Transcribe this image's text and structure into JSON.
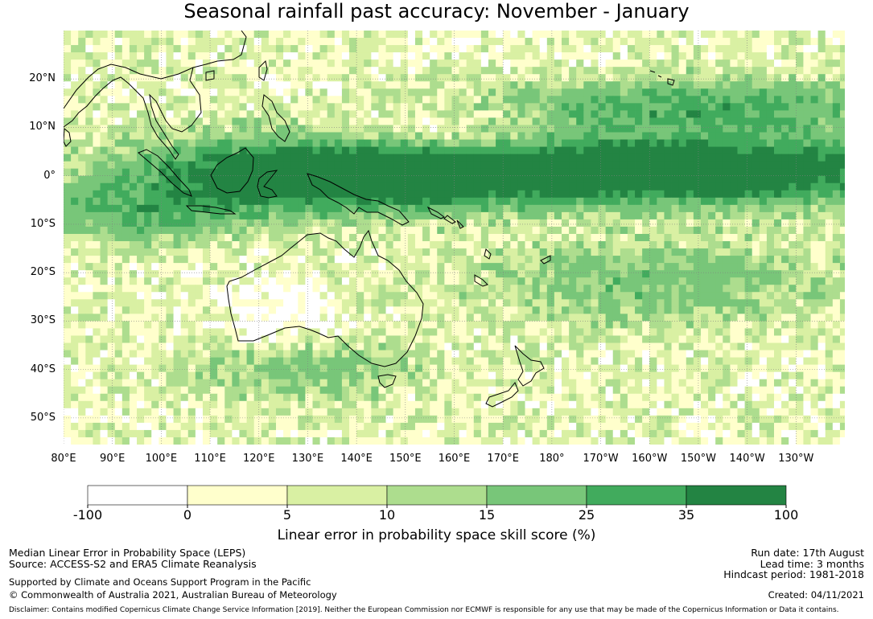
{
  "title": "Seasonal rainfall past accuracy: November - January",
  "map": {
    "lon_labels": [
      "80°E",
      "90°E",
      "100°E",
      "110°E",
      "120°E",
      "130°E",
      "140°E",
      "150°E",
      "160°E",
      "170°E",
      "180°",
      "170°W",
      "160°W",
      "150°W",
      "140°W",
      "130°W"
    ],
    "lat_labels": [
      "20°N",
      "10°N",
      "0°",
      "10°S",
      "20°S",
      "30°S",
      "40°S",
      "50°S"
    ],
    "lon_range": [
      80,
      240
    ],
    "lat_range": [
      -55.5,
      30
    ],
    "grid": true,
    "colors": {
      "ocean_bg": "#ffffcc",
      "coastline": "#000000",
      "gridline": "#808080"
    }
  },
  "colorbar": {
    "tick_labels": [
      "-100",
      "0",
      "5",
      "10",
      "15",
      "25",
      "35",
      "100"
    ],
    "colors": [
      "#ffffff",
      "#ffffcc",
      "#d9f0a3",
      "#addd8e",
      "#78c679",
      "#41ab5d",
      "#238443"
    ],
    "label": "Linear error in probability space skill score (%)"
  },
  "footer": {
    "line1": "Median Linear Error in Probability Space (LEPS)",
    "line2": "Source: ACCESS-S2 and ERA5 Climate Reanalysis",
    "line3": "Supported by Climate and Oceans Support Program in the Pacific",
    "line4": "© Commonwealth of Australia 2021, Australian Bureau of Meteorology",
    "run_date": "Run date: 17th August",
    "lead_time": "Lead time: 3 months",
    "hindcast": "Hindcast period: 1981-2018",
    "created": "Created: 04/11/2021",
    "disclaimer": "Disclaimer: Contains modified Copernicus Climate Change Service Information [2019]. Neither the European Commission nor ECMWF is responsible for any use that may be made of the Copernicus Information or Data it contains."
  }
}
